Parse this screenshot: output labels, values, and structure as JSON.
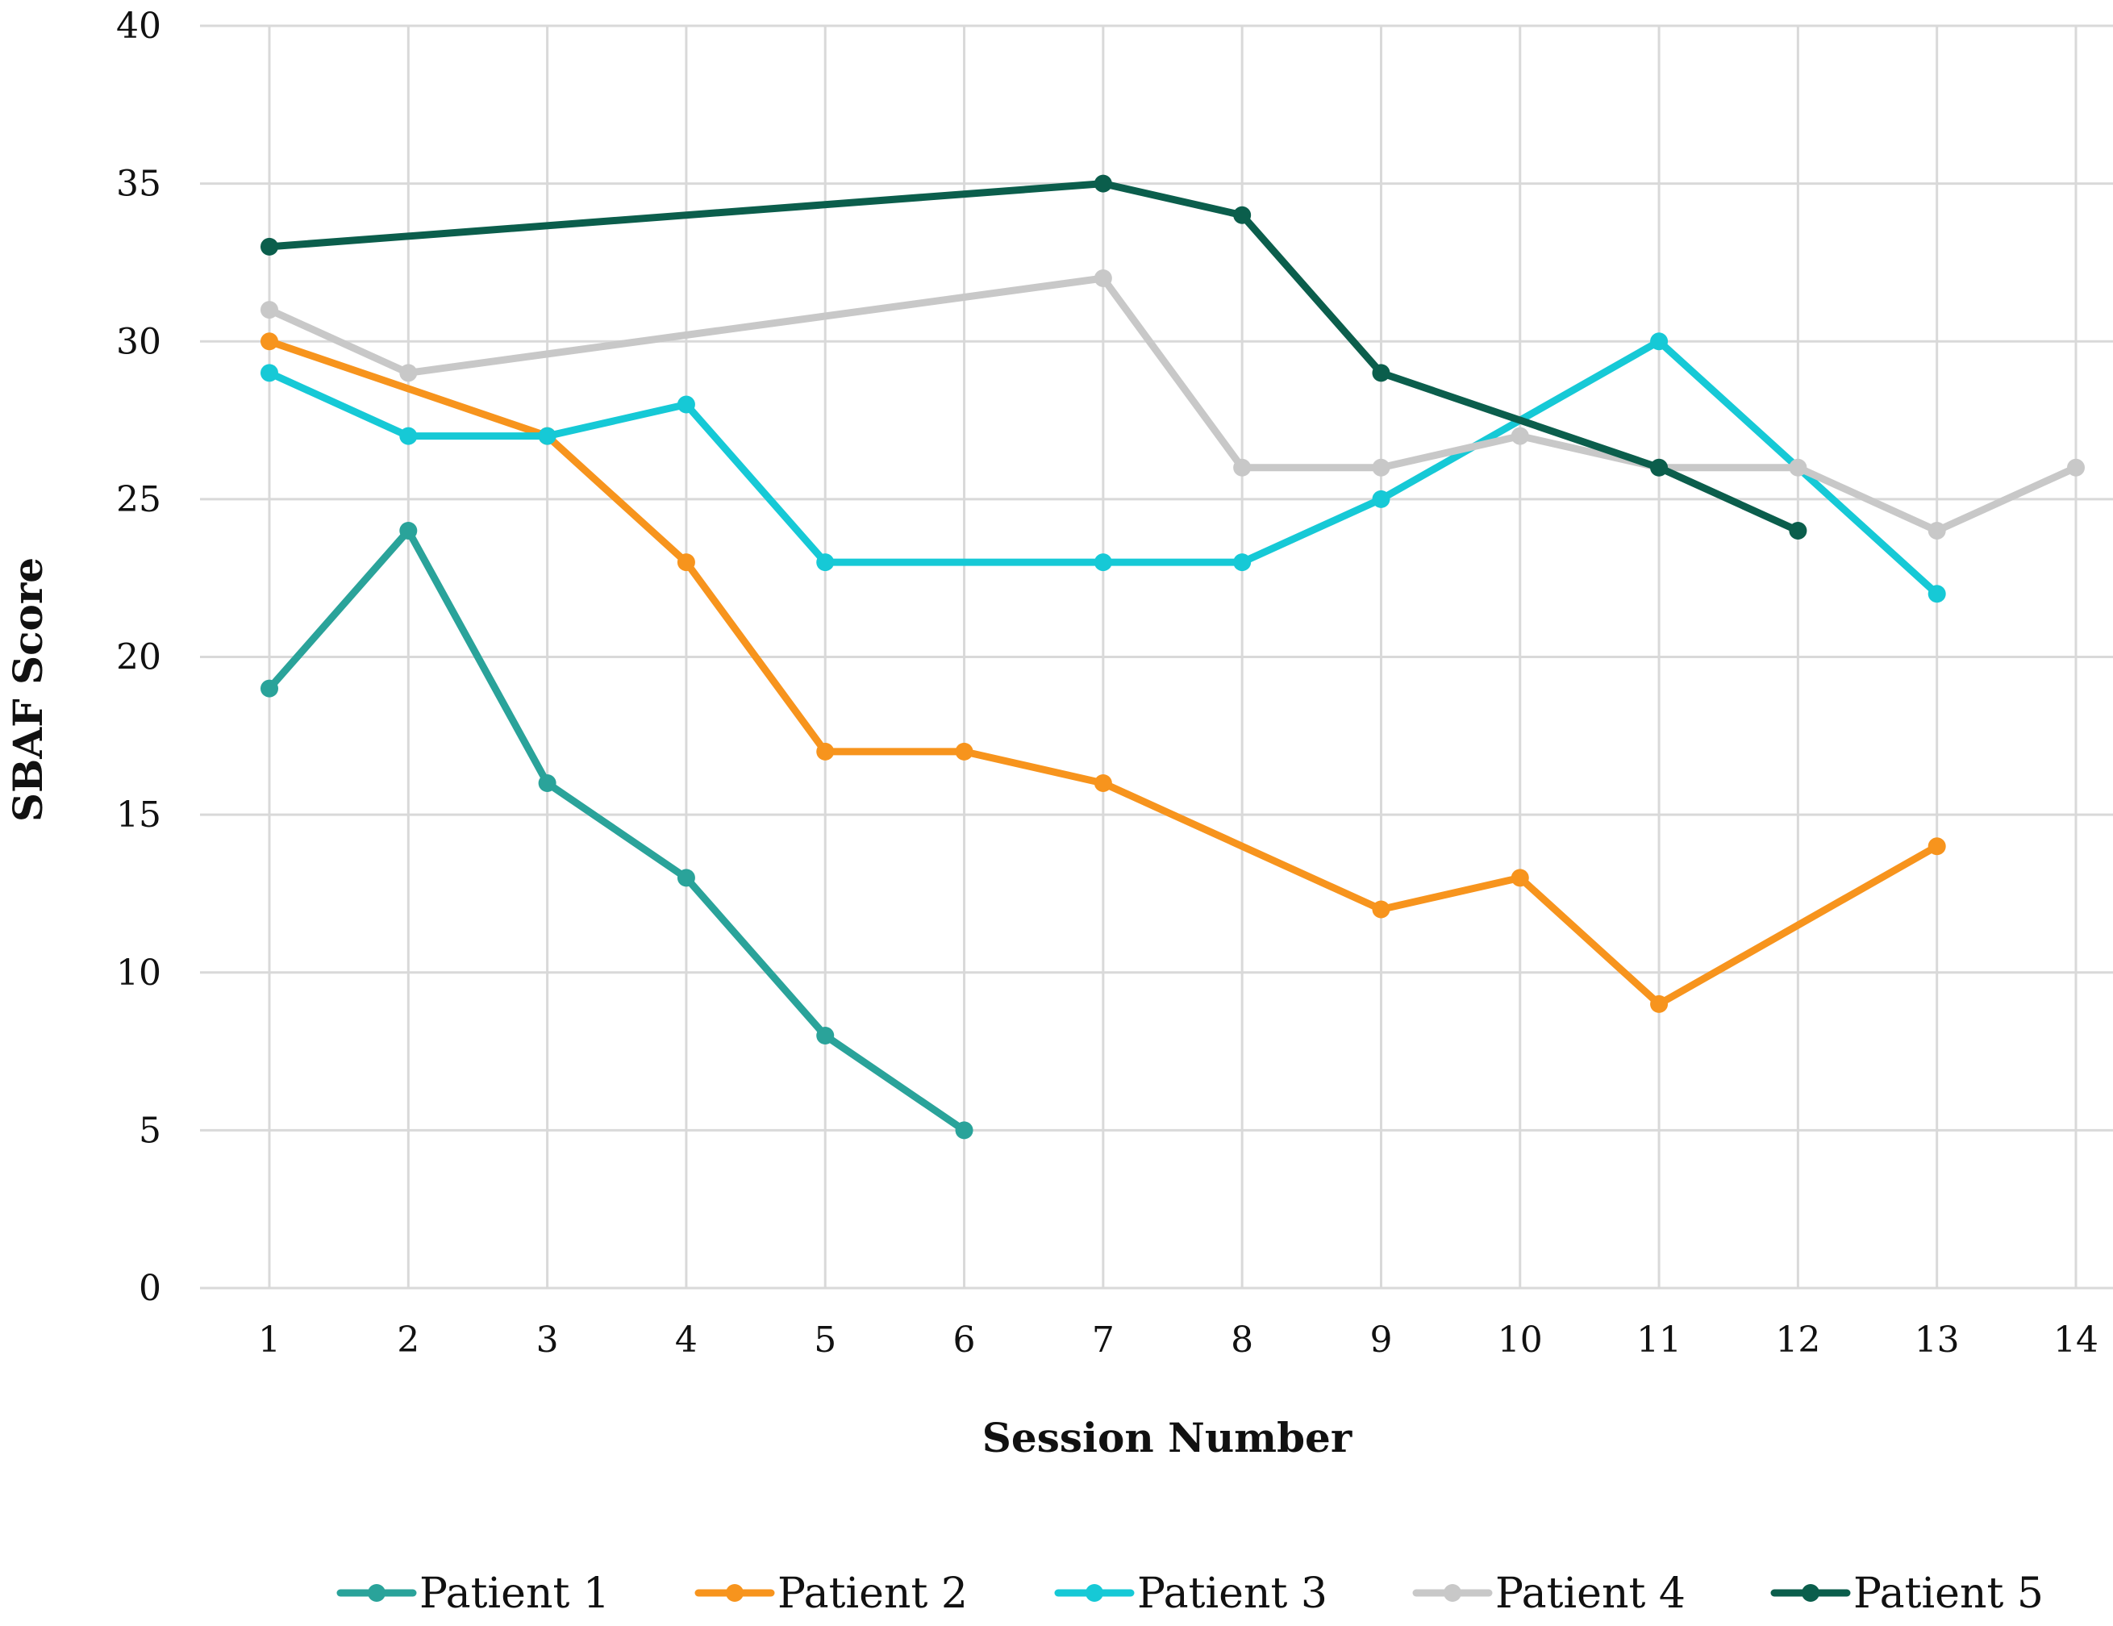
{
  "chart_data": {
    "type": "line",
    "title": "",
    "xlabel": "Session Number",
    "ylabel": "SBAF Score",
    "ylim": [
      0,
      40
    ],
    "y_ticks": [
      "0",
      "5",
      "10",
      "15",
      "20",
      "25",
      "30",
      "35",
      "40"
    ],
    "categories": [
      "1",
      "2",
      "3",
      "4",
      "5",
      "6",
      "7",
      "8",
      "9",
      "10",
      "11",
      "12",
      "13",
      "14"
    ],
    "grid": "both",
    "legend_position": "bottom",
    "series": [
      {
        "name": "Patient 1",
        "color": "#2aa39a",
        "values": [
          19,
          24,
          16,
          13,
          8,
          5,
          null,
          null,
          null,
          null,
          null,
          null,
          null,
          null
        ]
      },
      {
        "name": "Patient 2",
        "color": "#f7941d",
        "values": [
          30,
          null,
          27,
          23,
          17,
          17,
          16,
          null,
          12,
          13,
          9,
          null,
          14,
          null
        ]
      },
      {
        "name": "Patient 3",
        "color": "#16c9d6",
        "values": [
          29,
          27,
          27,
          28,
          23,
          null,
          23,
          23,
          25,
          null,
          30,
          null,
          22,
          null
        ]
      },
      {
        "name": "Patient 4",
        "color": "#c8c8c8",
        "values": [
          31,
          29,
          null,
          null,
          null,
          null,
          32,
          26,
          26,
          27,
          26,
          26,
          24,
          26
        ]
      },
      {
        "name": "Patient 5",
        "color": "#0b5e4c",
        "values": [
          33,
          null,
          null,
          null,
          null,
          null,
          35,
          34,
          29,
          null,
          26,
          24,
          null,
          null
        ]
      }
    ]
  }
}
